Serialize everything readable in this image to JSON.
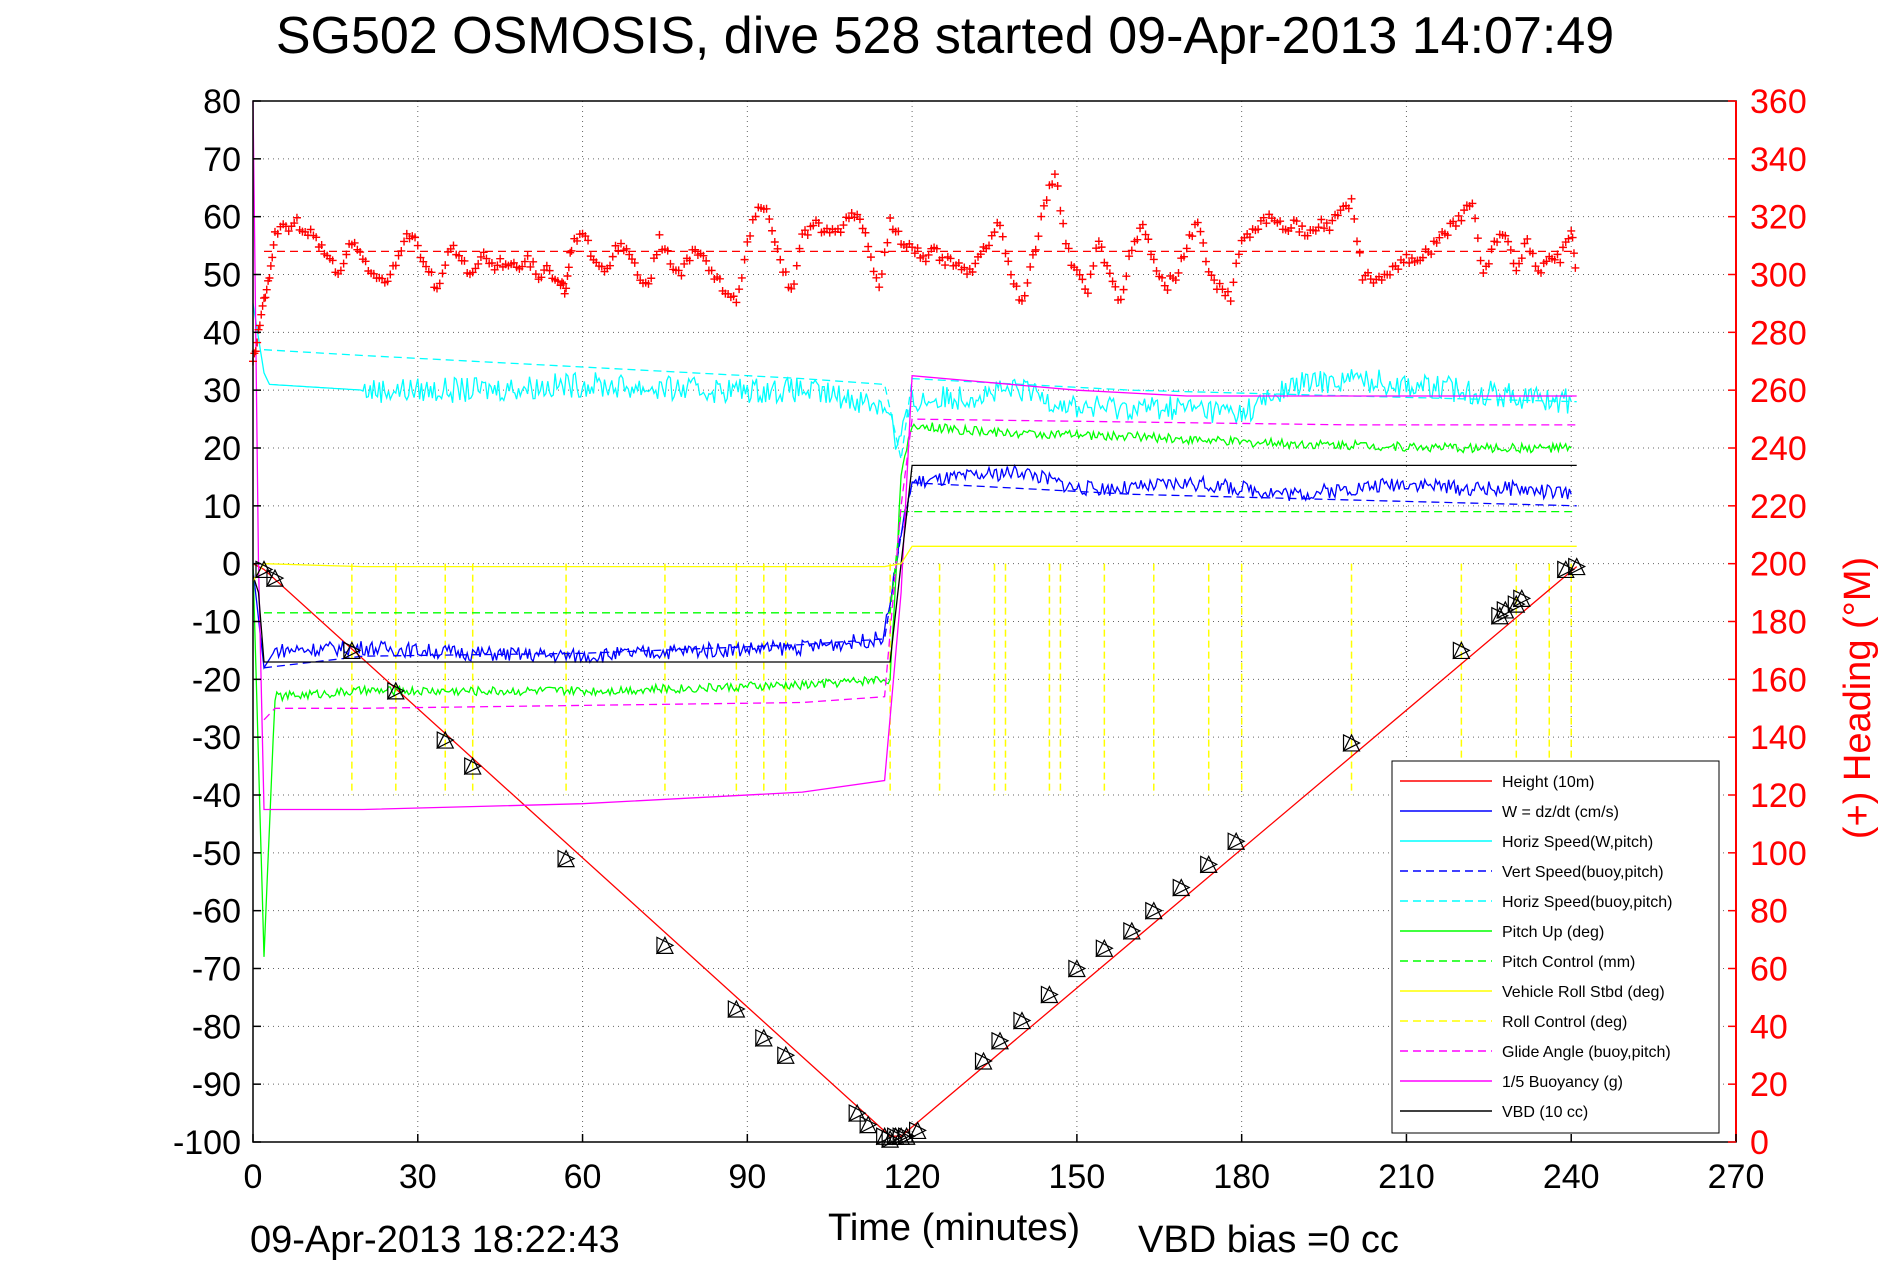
{
  "chart_data": {
    "type": "line",
    "title": "SG502 OSMOSIS, dive 528 started 09-Apr-2013 14:07:49",
    "xlabel": "Time (minutes)",
    "ylabel_right": "(+) Heading (°M)",
    "bottom_left_text": "09-Apr-2013 18:22:43",
    "bottom_right_text": "VBD bias =0 cc",
    "xlim": [
      0,
      270
    ],
    "ylim": [
      -100,
      80
    ],
    "y2lim": [
      0,
      360
    ],
    "x_ticks": [
      "0",
      "30",
      "60",
      "90",
      "120",
      "150",
      "180",
      "210",
      "240",
      "270"
    ],
    "y_ticks": [
      "80",
      "70",
      "60",
      "50",
      "40",
      "30",
      "20",
      "10",
      "0",
      "-10",
      "-20",
      "-30",
      "-40",
      "-50",
      "-60",
      "-70",
      "-80",
      "-90",
      "-100"
    ],
    "y2_ticks": [
      "360",
      "340",
      "320",
      "300",
      "280",
      "260",
      "240",
      "220",
      "200",
      "180",
      "160",
      "140",
      "120",
      "100",
      "80",
      "60",
      "40",
      "20",
      "0"
    ],
    "grid": true,
    "legend_position": "bottom-right",
    "colors": {
      "red": "#ff0000",
      "blue": "#0000ff",
      "cyan": "#00ffff",
      "green": "#00ff00",
      "yellow": "#ffff00",
      "magenta": "#ff00ff",
      "black": "#000000"
    },
    "legend": [
      {
        "label": "Height (10m)",
        "color": "#ff0000",
        "style": "solid"
      },
      {
        "label": "W = dz/dt (cm/s)",
        "color": "#0000ff",
        "style": "solid"
      },
      {
        "label": "Horiz Speed(W,pitch)",
        "color": "#00ffff",
        "style": "solid"
      },
      {
        "label": "Vert Speed(buoy,pitch)",
        "color": "#0000ff",
        "style": "dashed"
      },
      {
        "label": "Horiz Speed(buoy,pitch)",
        "color": "#00ffff",
        "style": "dashed"
      },
      {
        "label": "Pitch Up (deg)",
        "color": "#00ff00",
        "style": "solid"
      },
      {
        "label": "Pitch Control (mm)",
        "color": "#00ff00",
        "style": "dashed"
      },
      {
        "label": "Vehicle Roll Stbd (deg)",
        "color": "#ffff00",
        "style": "solid"
      },
      {
        "label": "Roll Control (deg)",
        "color": "#ffff00",
        "style": "dashed"
      },
      {
        "label": "Glide Angle (buoy,pitch)",
        "color": "#ff00ff",
        "style": "dashed"
      },
      {
        "label": "1/5 Buoyancy (g)",
        "color": "#ff00ff",
        "style": "solid"
      },
      {
        "label": "VBD (10 cc)",
        "color": "#000000",
        "style": "solid"
      }
    ],
    "series": [
      {
        "name": "Height (10m)",
        "color": "#ff0000",
        "style": "solid",
        "x": [
          0,
          2,
          116,
          118,
          241
        ],
        "y": [
          0,
          -1,
          -99,
          -99,
          -0.5
        ]
      },
      {
        "name": "W = dz/dt (cm/s)",
        "color": "#0000ff",
        "style": "solid",
        "x": [
          0,
          2,
          4,
          20,
          40,
          60,
          80,
          100,
          114,
          115,
          118,
          120,
          130,
          140,
          150,
          160,
          170,
          180,
          190,
          200,
          210,
          220,
          230,
          240
        ],
        "y": [
          -1,
          -18,
          -15,
          -14.5,
          -15.5,
          -16,
          -15,
          -14.5,
          -13,
          -12,
          5,
          14,
          15,
          16,
          13,
          13,
          14,
          13,
          12,
          13,
          14,
          13,
          13,
          12
        ]
      },
      {
        "name": "Horiz Speed(W,pitch)",
        "color": "#00ffff",
        "style": "solid",
        "x": [
          0,
          2,
          3,
          20,
          40,
          60,
          80,
          100,
          112,
          116,
          117,
          118,
          120,
          130,
          140,
          150,
          160,
          170,
          180,
          190,
          200,
          210,
          220,
          230,
          240
        ],
        "y": [
          45,
          33,
          31,
          30,
          30,
          31,
          30,
          30,
          28,
          27,
          20,
          22,
          28,
          29,
          30,
          27,
          27,
          27,
          26,
          31,
          32,
          31,
          30,
          29,
          28
        ]
      },
      {
        "name": "Vert Speed(buoy,pitch)",
        "color": "#0000ff",
        "style": "dashed",
        "x": [
          2,
          20,
          60,
          100,
          115,
          118,
          120,
          160,
          200,
          241
        ],
        "y": [
          -18,
          -16,
          -15.5,
          -14,
          -13,
          5,
          14,
          12,
          11,
          10
        ]
      },
      {
        "name": "Horiz Speed(buoy,pitch)",
        "color": "#00ffff",
        "style": "dashed",
        "x": [
          2,
          20,
          60,
          100,
          115,
          118,
          120,
          160,
          200,
          241
        ],
        "y": [
          37,
          36,
          34,
          32,
          31,
          18,
          32,
          30,
          29,
          28
        ]
      },
      {
        "name": "Pitch Up (deg)",
        "color": "#00ff00",
        "style": "solid",
        "x": [
          0,
          2,
          4,
          20,
          40,
          60,
          80,
          100,
          114,
          116,
          118,
          120,
          130,
          140,
          160,
          180,
          200,
          220,
          240
        ],
        "y": [
          0,
          -68,
          -23,
          -22,
          -22,
          -22,
          -21.5,
          -21,
          -20,
          -20,
          15,
          24,
          23,
          22.5,
          22,
          21,
          20.5,
          20,
          20
        ]
      },
      {
        "name": "Pitch Control (mm)",
        "color": "#00ff00",
        "style": "dashed",
        "x": [
          2,
          116,
          118,
          241
        ],
        "y": [
          -8.5,
          -8.5,
          9,
          9
        ]
      },
      {
        "name": "Glide Angle (buoy,pitch)",
        "color": "#ff00ff",
        "style": "dashed",
        "x": [
          2,
          4,
          20,
          60,
          100,
          115,
          118,
          120,
          160,
          200,
          241
        ],
        "y": [
          -27,
          -25,
          -25,
          -24.5,
          -24,
          -23,
          10,
          25,
          24.5,
          24,
          24
        ]
      },
      {
        "name": "1/5 Buoyancy (g)",
        "color": "#ff00ff",
        "style": "solid",
        "x": [
          0,
          1,
          2,
          20,
          60,
          100,
          115,
          118,
          120,
          150,
          170,
          190,
          241
        ],
        "y": [
          80,
          0,
          -42.5,
          -42.5,
          -41.5,
          -39.5,
          -37.5,
          -5,
          32.5,
          30,
          29,
          29,
          29
        ]
      },
      {
        "name": "VBD (10 cc)",
        "color": "#000000",
        "style": "solid",
        "x": [
          0,
          1,
          2,
          116,
          120,
          241
        ],
        "y": [
          -2,
          -5,
          -17,
          -17,
          17,
          17
        ]
      },
      {
        "name": "Vehicle Roll Stbd (deg)",
        "color": "#ffff00",
        "style": "solid",
        "x": [
          0,
          2,
          20,
          60,
          100,
          115,
          118,
          120,
          241
        ],
        "y": [
          -3,
          0,
          -0.5,
          -0.5,
          -0.5,
          -0.5,
          0,
          3,
          3
        ]
      }
    ],
    "roll_control_spikes_x": [
      18,
      26,
      35,
      40,
      57,
      75,
      88,
      93,
      97,
      116,
      125,
      135,
      137,
      145,
      147,
      155,
      164,
      174,
      180,
      200,
      220,
      230,
      236,
      240
    ],
    "heading_series": {
      "name": "(+) Heading",
      "color": "#ff0000",
      "marker": "+",
      "mean_heading": 308,
      "x": [
        0,
        1,
        2,
        3,
        4,
        6,
        8,
        10,
        12,
        14,
        16,
        18,
        20,
        22,
        24,
        26,
        28,
        30,
        32,
        34,
        36,
        38,
        40,
        42,
        44,
        46,
        48,
        50,
        52,
        54,
        56,
        57,
        58,
        60,
        62,
        64,
        66,
        68,
        70,
        72,
        74,
        76,
        78,
        80,
        82,
        84,
        86,
        88,
        90,
        92,
        94,
        96,
        98,
        100,
        102,
        104,
        106,
        108,
        110,
        112,
        114,
        116,
        118,
        120,
        122,
        124,
        126,
        128,
        130,
        132,
        134,
        136,
        138,
        140,
        142,
        144,
        146,
        148,
        150,
        152,
        154,
        156,
        158,
        160,
        162,
        164,
        166,
        168,
        170,
        172,
        174,
        176,
        178,
        180,
        182,
        184,
        186,
        188,
        190,
        192,
        194,
        196,
        198,
        200,
        202,
        204,
        206,
        208,
        210,
        212,
        214,
        216,
        218,
        220,
        222,
        224,
        226,
        228,
        230,
        232,
        234,
        236,
        238,
        240,
        241
      ],
      "y": [
        270,
        280,
        290,
        300,
        315,
        316,
        318,
        315,
        310,
        305,
        300,
        312,
        306,
        300,
        296,
        305,
        315,
        310,
        300,
        295,
        310,
        305,
        300,
        306,
        303,
        304,
        302,
        305,
        300,
        302,
        296,
        294,
        310,
        315,
        305,
        300,
        308,
        310,
        300,
        296,
        312,
        305,
        300,
        308,
        305,
        300,
        294,
        290,
        310,
        325,
        320,
        305,
        294,
        312,
        318,
        315,
        314,
        318,
        322,
        310,
        295,
        318,
        312,
        310,
        306,
        308,
        305,
        304,
        300,
        305,
        312,
        318,
        300,
        290,
        305,
        325,
        335,
        310,
        300,
        295,
        312,
        300,
        290,
        310,
        318,
        305,
        295,
        300,
        310,
        318,
        300,
        295,
        292,
        312,
        315,
        318,
        320,
        316,
        318,
        312,
        318,
        316,
        322,
        325,
        300,
        298,
        300,
        302,
        305,
        306,
        308,
        312,
        316,
        320,
        325,
        300,
        310,
        315,
        302,
        312,
        300,
        308,
        305,
        315,
        300
      ]
    },
    "descent_markers": {
      "x": [
        2,
        4,
        18,
        26,
        35,
        40,
        57,
        75,
        88,
        93,
        97,
        110,
        112,
        115,
        116,
        117
      ],
      "y": [
        -1,
        -2.5,
        -15,
        -22,
        -30.5,
        -35,
        -51,
        -66,
        -77,
        -82,
        -85,
        -95,
        -97,
        -99,
        -99.5,
        -99
      ]
    },
    "ascent_markers": {
      "x": [
        118,
        119,
        121,
        133,
        136,
        140,
        145,
        150,
        155,
        160,
        164,
        169,
        174,
        179,
        200,
        220,
        227,
        228,
        230,
        231,
        239,
        241
      ],
      "y": [
        -99,
        -99,
        -98,
        -86,
        -82.5,
        -79,
        -74.5,
        -70,
        -66.5,
        -63.5,
        -60,
        -56,
        -52,
        -48,
        -31,
        -15,
        -9,
        -8,
        -7,
        -6,
        -1,
        -0.5
      ]
    }
  }
}
